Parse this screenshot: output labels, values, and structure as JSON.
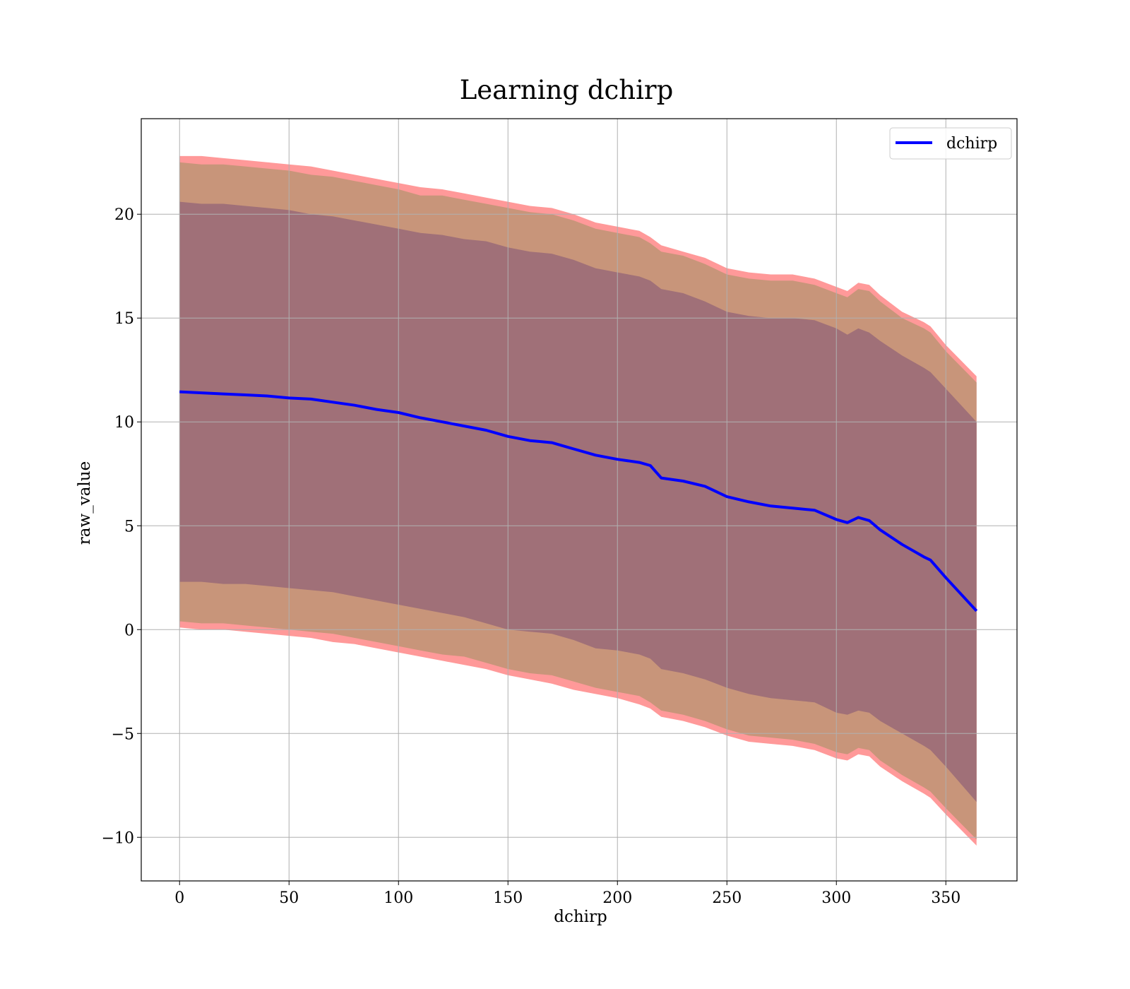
{
  "chart_data": {
    "type": "area",
    "title": "Learning dchirp",
    "xlabel": "dchirp",
    "ylabel": "raw_value",
    "xlim": [
      -17.5,
      382.5
    ],
    "ylim": [
      -12.1,
      24.6
    ],
    "xticks": [
      0,
      50,
      100,
      150,
      200,
      250,
      300,
      350
    ],
    "yticks": [
      -10,
      -5,
      0,
      5,
      10,
      15,
      20
    ],
    "xtick_labels": [
      "0",
      "50",
      "100",
      "150",
      "200",
      "250",
      "300",
      "350"
    ],
    "ytick_labels": [
      "−10",
      "−5",
      "0",
      "5",
      "10",
      "15",
      "20"
    ],
    "grid": true,
    "legend": {
      "position": "top-right",
      "entries": [
        "dchirp"
      ]
    },
    "colors": {
      "line": "#0000ff",
      "band_outer": "#ff9999",
      "band_middle": "#c8957a",
      "band_inner": "#a07078",
      "grid": "#b0b0b0"
    },
    "x": [
      0,
      10,
      20,
      30,
      40,
      50,
      60,
      70,
      80,
      90,
      100,
      110,
      120,
      130,
      140,
      150,
      160,
      170,
      180,
      190,
      200,
      210,
      215,
      220,
      230,
      240,
      250,
      260,
      270,
      280,
      290,
      300,
      305,
      310,
      315,
      320,
      330,
      340,
      343,
      350,
      364
    ],
    "series": [
      {
        "name": "dchirp",
        "values": [
          11.45,
          11.4,
          11.35,
          11.3,
          11.25,
          11.15,
          11.1,
          10.95,
          10.8,
          10.6,
          10.45,
          10.2,
          10.0,
          9.8,
          9.6,
          9.3,
          9.1,
          9.0,
          8.7,
          8.4,
          8.2,
          8.05,
          7.9,
          7.3,
          7.15,
          6.9,
          6.4,
          6.15,
          5.95,
          5.85,
          5.75,
          5.3,
          5.15,
          5.4,
          5.25,
          4.8,
          4.1,
          3.5,
          3.35,
          2.5,
          0.9
        ]
      }
    ],
    "band_inner_upper": [
      20.6,
      20.5,
      20.5,
      20.4,
      20.3,
      20.2,
      20.0,
      19.9,
      19.7,
      19.5,
      19.3,
      19.1,
      19.0,
      18.8,
      18.7,
      18.4,
      18.2,
      18.1,
      17.8,
      17.4,
      17.2,
      17.0,
      16.8,
      16.4,
      16.2,
      15.8,
      15.3,
      15.1,
      15.0,
      15.0,
      14.9,
      14.5,
      14.2,
      14.5,
      14.3,
      13.9,
      13.2,
      12.6,
      12.4,
      11.6,
      10.0
    ],
    "band_inner_lower": [
      2.3,
      2.3,
      2.2,
      2.2,
      2.1,
      2.0,
      1.9,
      1.8,
      1.6,
      1.4,
      1.2,
      1.0,
      0.8,
      0.6,
      0.3,
      0.0,
      -0.1,
      -0.2,
      -0.5,
      -0.9,
      -1.0,
      -1.2,
      -1.4,
      -1.9,
      -2.1,
      -2.4,
      -2.8,
      -3.1,
      -3.3,
      -3.4,
      -3.5,
      -4.0,
      -4.1,
      -3.9,
      -4.0,
      -4.4,
      -5.0,
      -5.6,
      -5.8,
      -6.6,
      -8.3
    ],
    "band_middle_upper": [
      22.5,
      22.4,
      22.4,
      22.3,
      22.2,
      22.1,
      21.9,
      21.8,
      21.6,
      21.4,
      21.2,
      20.9,
      20.9,
      20.7,
      20.5,
      20.3,
      20.1,
      20.0,
      19.7,
      19.3,
      19.1,
      18.9,
      18.6,
      18.2,
      18.0,
      17.6,
      17.1,
      16.9,
      16.8,
      16.8,
      16.6,
      16.2,
      16.0,
      16.4,
      16.3,
      15.8,
      15.0,
      14.5,
      14.3,
      13.4,
      11.9
    ],
    "band_middle_lower": [
      0.4,
      0.3,
      0.3,
      0.2,
      0.1,
      0.0,
      -0.1,
      -0.2,
      -0.4,
      -0.6,
      -0.8,
      -1.0,
      -1.2,
      -1.3,
      -1.6,
      -1.9,
      -2.1,
      -2.2,
      -2.5,
      -2.8,
      -3.0,
      -3.2,
      -3.5,
      -3.9,
      -4.1,
      -4.4,
      -4.8,
      -5.1,
      -5.2,
      -5.3,
      -5.5,
      -5.9,
      -6.0,
      -5.7,
      -5.8,
      -6.3,
      -7.0,
      -7.6,
      -7.8,
      -8.6,
      -10.1
    ],
    "band_outer_upper": [
      22.8,
      22.8,
      22.7,
      22.6,
      22.5,
      22.4,
      22.3,
      22.1,
      21.9,
      21.7,
      21.5,
      21.3,
      21.2,
      21.0,
      20.8,
      20.6,
      20.4,
      20.3,
      20.0,
      19.6,
      19.4,
      19.2,
      18.9,
      18.5,
      18.2,
      17.9,
      17.4,
      17.2,
      17.1,
      17.1,
      16.9,
      16.5,
      16.3,
      16.7,
      16.6,
      16.1,
      15.3,
      14.8,
      14.6,
      13.7,
      12.2
    ],
    "band_outer_lower": [
      0.1,
      0.0,
      0.0,
      -0.1,
      -0.2,
      -0.3,
      -0.4,
      -0.6,
      -0.7,
      -0.9,
      -1.1,
      -1.3,
      -1.5,
      -1.7,
      -1.9,
      -2.2,
      -2.4,
      -2.6,
      -2.9,
      -3.1,
      -3.3,
      -3.6,
      -3.8,
      -4.2,
      -4.4,
      -4.7,
      -5.1,
      -5.4,
      -5.5,
      -5.6,
      -5.8,
      -6.2,
      -6.3,
      -6.0,
      -6.1,
      -6.6,
      -7.3,
      -7.9,
      -8.1,
      -8.9,
      -10.4
    ]
  }
}
